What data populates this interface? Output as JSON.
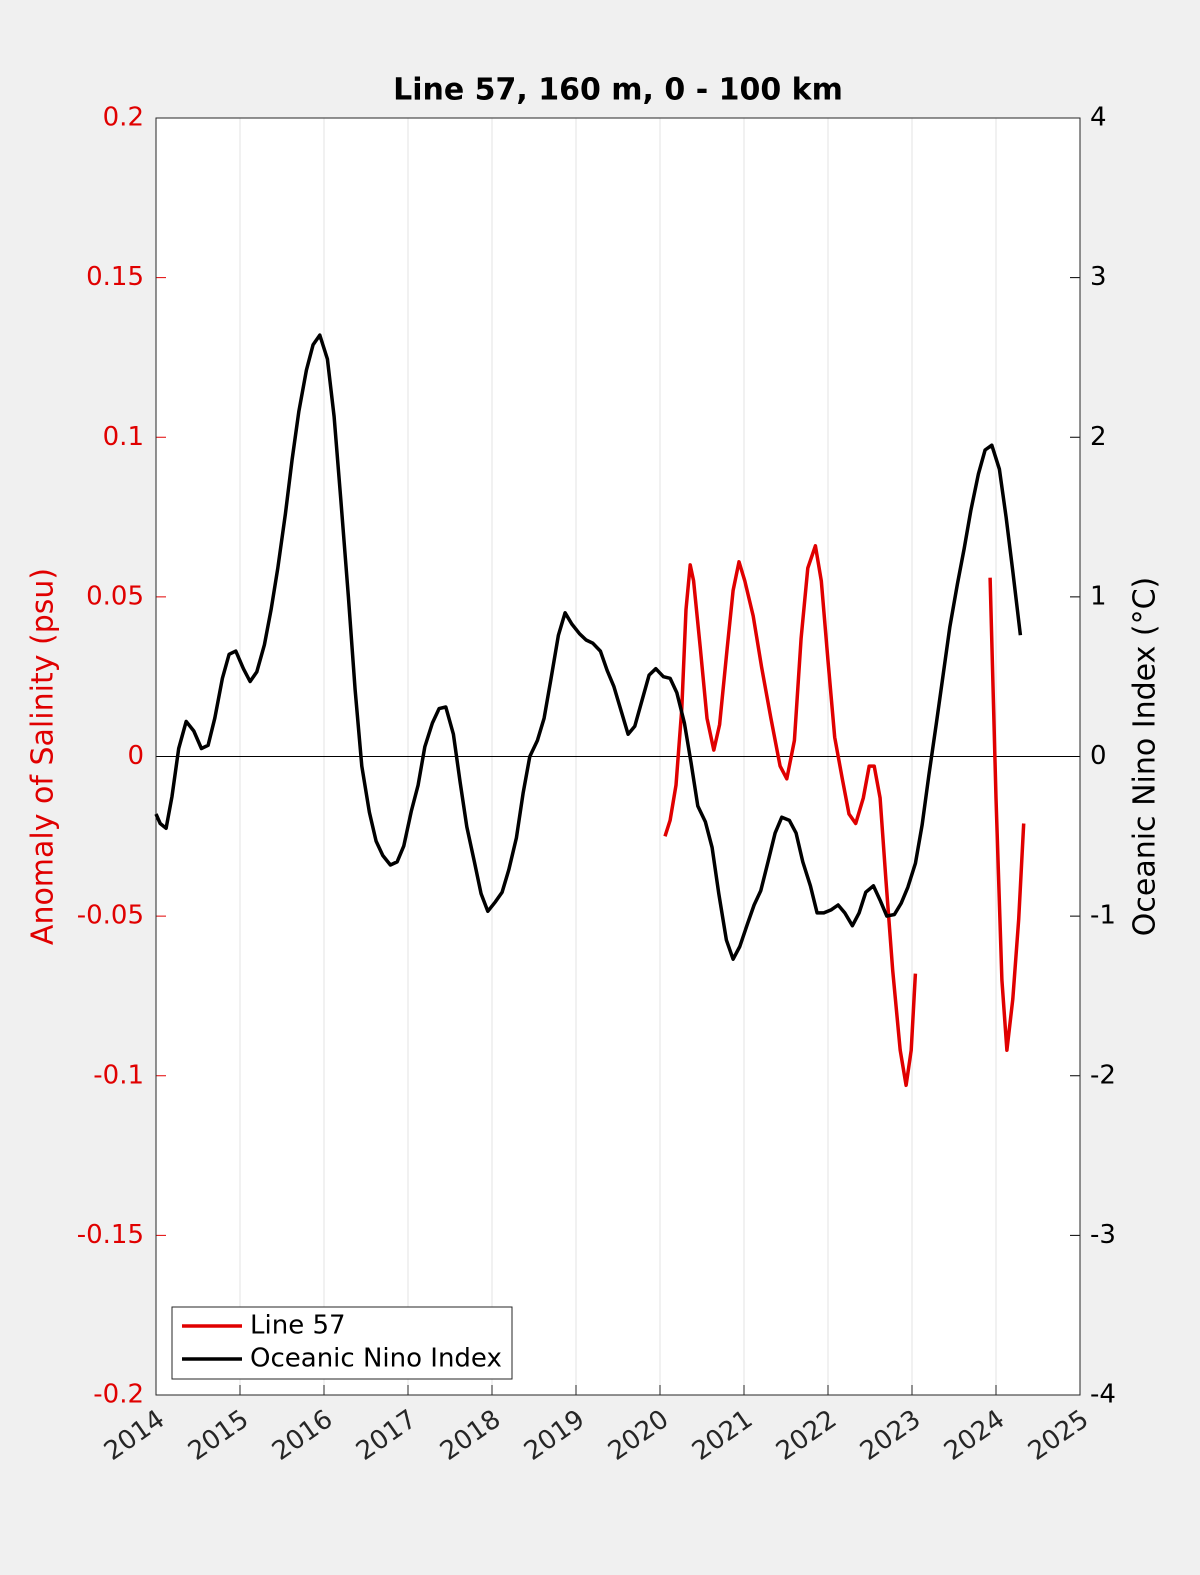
{
  "chart_data": {
    "type": "line",
    "title": "Line 57, 160 m, 0 - 100 km",
    "ylabel": "Anomaly of Salinity (psu)",
    "y2label": "Oceanic Nino Index (°C)",
    "ycolor": "#e00000",
    "y2color": "#000000",
    "xlim": [
      2014,
      2025
    ],
    "xticks": [
      2014,
      2015,
      2016,
      2017,
      2018,
      2019,
      2020,
      2021,
      2022,
      2023,
      2024,
      2025
    ],
    "ylim": [
      -0.2,
      0.2
    ],
    "yticks": [
      -0.2,
      -0.15,
      -0.1,
      -0.05,
      0,
      0.05,
      0.1,
      0.15,
      0.2
    ],
    "y2lim": [
      -4,
      4
    ],
    "y2ticks": [
      -4,
      -3,
      -2,
      -1,
      0,
      1,
      2,
      3,
      4
    ],
    "xgrid": true,
    "zero_line": true,
    "legend": "lower left",
    "series": [
      {
        "name": "Line 57",
        "color": "#e00000",
        "x": [
          2020.06,
          2020.12,
          2020.19,
          2020.26,
          2020.31,
          2020.36,
          2020.4,
          2020.48,
          2020.56,
          2020.64,
          2020.71,
          2020.8,
          2020.87,
          2020.94,
          2021.01,
          2021.11,
          2021.21,
          2021.32,
          2021.43,
          2021.51,
          2021.6,
          2021.68,
          2021.76,
          2021.85,
          2021.92,
          2022.0,
          2022.08,
          2022.17,
          2022.25,
          2022.33,
          2022.42,
          2022.49,
          2022.55,
          2022.62,
          2022.69,
          2022.77,
          2022.86,
          2022.93,
          2022.99,
          2023.04,
          null,
          2023.93,
          2024.0,
          2024.07,
          2024.13,
          2024.2,
          2024.27,
          2024.33
        ],
        "values": [
          -0.025,
          -0.02,
          -0.009,
          0.015,
          0.046,
          0.06,
          0.055,
          0.034,
          0.012,
          0.002,
          0.01,
          0.034,
          0.052,
          0.061,
          0.055,
          0.044,
          0.028,
          0.012,
          -0.003,
          -0.007,
          0.005,
          0.037,
          0.059,
          0.066,
          0.055,
          0.03,
          0.006,
          -0.007,
          -0.018,
          -0.021,
          -0.013,
          -0.003,
          -0.003,
          -0.013,
          -0.039,
          -0.067,
          -0.092,
          -0.103,
          -0.092,
          -0.068,
          null,
          0.056,
          -0.013,
          -0.07,
          -0.092,
          -0.076,
          -0.051,
          -0.021
        ]
      },
      {
        "name": "Oceanic Nino Index",
        "color": "#000000",
        "axis": "y2",
        "x": [
          2014.0,
          2014.05,
          2014.12,
          2014.19,
          2014.27,
          2014.36,
          2014.45,
          2014.54,
          2014.62,
          2014.7,
          2014.79,
          2014.87,
          2014.95,
          2015.04,
          2015.12,
          2015.2,
          2015.29,
          2015.37,
          2015.45,
          2015.54,
          2015.62,
          2015.7,
          2015.79,
          2015.87,
          2015.95,
          2016.04,
          2016.12,
          2016.2,
          2016.29,
          2016.37,
          2016.45,
          2016.54,
          2016.62,
          2016.7,
          2016.79,
          2016.87,
          2016.95,
          2017.04,
          2017.12,
          2017.2,
          2017.29,
          2017.37,
          2017.45,
          2017.54,
          2017.62,
          2017.7,
          2017.79,
          2017.87,
          2017.95,
          2018.04,
          2018.12,
          2018.2,
          2018.29,
          2018.37,
          2018.45,
          2018.54,
          2018.62,
          2018.7,
          2018.79,
          2018.87,
          2018.95,
          2019.04,
          2019.12,
          2019.2,
          2019.29,
          2019.37,
          2019.45,
          2019.54,
          2019.62,
          2019.7,
          2019.79,
          2019.87,
          2019.95,
          2020.04,
          2020.12,
          2020.2,
          2020.29,
          2020.37,
          2020.45,
          2020.54,
          2020.62,
          2020.7,
          2020.79,
          2020.87,
          2020.95,
          2021.04,
          2021.12,
          2021.2,
          2021.29,
          2021.37,
          2021.45,
          2021.54,
          2021.62,
          2021.7,
          2021.79,
          2021.87,
          2021.95,
          2022.04,
          2022.12,
          2022.2,
          2022.29,
          2022.37,
          2022.45,
          2022.54,
          2022.62,
          2022.7,
          2022.79,
          2022.87,
          2022.95,
          2023.04,
          2023.12,
          2023.2,
          2023.29,
          2023.37,
          2023.45,
          2023.54,
          2023.62,
          2023.7,
          2023.79,
          2023.87,
          2023.95,
          2024.04,
          2024.12,
          2024.2,
          2024.29
        ],
        "values": [
          -0.36,
          -0.42,
          -0.45,
          -0.25,
          0.05,
          0.22,
          0.16,
          0.05,
          0.07,
          0.24,
          0.49,
          0.64,
          0.66,
          0.55,
          0.47,
          0.53,
          0.7,
          0.92,
          1.18,
          1.52,
          1.86,
          2.16,
          2.42,
          2.58,
          2.64,
          2.49,
          2.13,
          1.61,
          1.0,
          0.42,
          -0.06,
          -0.35,
          -0.53,
          -0.62,
          -0.68,
          -0.66,
          -0.56,
          -0.34,
          -0.18,
          0.06,
          0.21,
          0.3,
          0.31,
          0.14,
          -0.16,
          -0.44,
          -0.66,
          -0.86,
          -0.97,
          -0.91,
          -0.85,
          -0.71,
          -0.51,
          -0.23,
          0.0,
          0.1,
          0.24,
          0.48,
          0.76,
          0.9,
          0.83,
          0.77,
          0.73,
          0.71,
          0.66,
          0.54,
          0.44,
          0.28,
          0.14,
          0.19,
          0.36,
          0.51,
          0.55,
          0.5,
          0.49,
          0.4,
          0.21,
          -0.04,
          -0.31,
          -0.41,
          -0.57,
          -0.86,
          -1.15,
          -1.27,
          -1.19,
          -1.05,
          -0.93,
          -0.84,
          -0.65,
          -0.48,
          -0.38,
          -0.4,
          -0.48,
          -0.66,
          -0.81,
          -0.98,
          -0.98,
          -0.96,
          -0.93,
          -0.98,
          -1.06,
          -0.98,
          -0.85,
          -0.81,
          -0.9,
          -1.0,
          -0.99,
          -0.92,
          -0.82,
          -0.67,
          -0.43,
          -0.12,
          0.21,
          0.51,
          0.81,
          1.08,
          1.3,
          1.54,
          1.77,
          1.92,
          1.95,
          1.8,
          1.5,
          1.16,
          0.76
        ]
      }
    ]
  }
}
